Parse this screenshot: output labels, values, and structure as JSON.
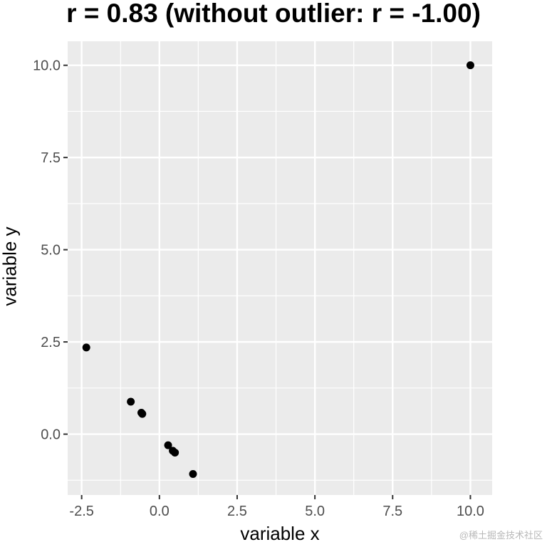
{
  "chart_data": {
    "type": "scatter",
    "title": "r = 0.83 (without outlier: r = -1.00)",
    "xlabel": "variable x",
    "ylabel": "variable y",
    "xlim": [
      -2.95,
      10.7
    ],
    "ylim": [
      -1.65,
      10.65
    ],
    "x_ticks": [
      -2.5,
      0.0,
      2.5,
      5.0,
      7.5,
      10.0
    ],
    "x_tick_labels": [
      "-2.5",
      "0.0",
      "2.5",
      "5.0",
      "7.5",
      "10.0"
    ],
    "y_ticks": [
      0.0,
      2.5,
      5.0,
      7.5,
      10.0
    ],
    "y_tick_labels": [
      "0.0",
      "2.5",
      "5.0",
      "7.5",
      "10.0"
    ],
    "grid": true,
    "panel_background": "#ebebeb",
    "grid_color": "#ffffff",
    "point_color": "#000000",
    "points": [
      {
        "x": -2.35,
        "y": 2.35
      },
      {
        "x": -0.92,
        "y": 0.88
      },
      {
        "x": -0.58,
        "y": 0.58
      },
      {
        "x": -0.55,
        "y": 0.55
      },
      {
        "x": 0.28,
        "y": -0.3
      },
      {
        "x": 0.43,
        "y": -0.45
      },
      {
        "x": 0.5,
        "y": -0.5
      },
      {
        "x": 1.08,
        "y": -1.08
      },
      {
        "x": 10.0,
        "y": 10.0
      }
    ]
  },
  "watermark": "@稀土掘金技术社区"
}
